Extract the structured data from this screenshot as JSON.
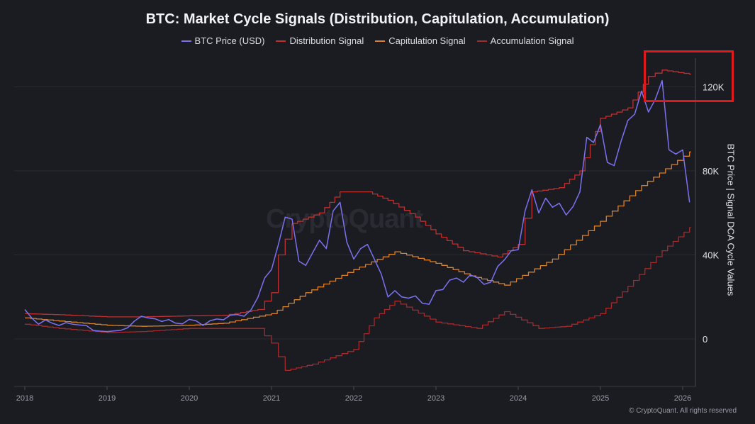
{
  "chart_data": {
    "type": "line",
    "title": "BTC: Market Cycle Signals (Distribution, Capitulation, Accumulation)",
    "ylabel": "BTC Price | Signal DCA Cycle Values",
    "xlabel": "",
    "x_ticks": [
      "2018",
      "2019",
      "2020",
      "2021",
      "2022",
      "2023",
      "2024",
      "2025",
      "2026"
    ],
    "y_ticks": [
      {
        "v": 0,
        "label": "0"
      },
      {
        "v": 40000,
        "label": "40K"
      },
      {
        "v": 80000,
        "label": "80K"
      },
      {
        "v": 120000,
        "label": "120K"
      }
    ],
    "ylim": [
      -22000,
      135000
    ],
    "xlim": [
      "2018-01",
      "2026-03"
    ],
    "grid": true,
    "legend_position": "top",
    "series": [
      {
        "name": "BTC Price (USD)",
        "color": "#7b72f0",
        "points": [
          [
            "2018-01",
            14000
          ],
          [
            "2018-02",
            10000
          ],
          [
            "2018-03",
            7000
          ],
          [
            "2018-04",
            9000
          ],
          [
            "2018-05",
            7500
          ],
          [
            "2018-06",
            6400
          ],
          [
            "2018-07",
            7700
          ],
          [
            "2018-08",
            7000
          ],
          [
            "2018-09",
            6600
          ],
          [
            "2018-10",
            6300
          ],
          [
            "2018-11",
            4000
          ],
          [
            "2018-12",
            3700
          ],
          [
            "2019-01",
            3500
          ],
          [
            "2019-02",
            3800
          ],
          [
            "2019-03",
            4100
          ],
          [
            "2019-04",
            5300
          ],
          [
            "2019-05",
            8500
          ],
          [
            "2019-06",
            10800
          ],
          [
            "2019-07",
            10000
          ],
          [
            "2019-08",
            9600
          ],
          [
            "2019-09",
            8300
          ],
          [
            "2019-10",
            9200
          ],
          [
            "2019-11",
            7500
          ],
          [
            "2019-12",
            7200
          ],
          [
            "2020-01",
            9300
          ],
          [
            "2020-02",
            8600
          ],
          [
            "2020-03",
            6400
          ],
          [
            "2020-04",
            8600
          ],
          [
            "2020-05",
            9500
          ],
          [
            "2020-06",
            9100
          ],
          [
            "2020-07",
            11300
          ],
          [
            "2020-08",
            11600
          ],
          [
            "2020-09",
            10800
          ],
          [
            "2020-10",
            13800
          ],
          [
            "2020-11",
            19700
          ],
          [
            "2020-12",
            29000
          ],
          [
            "2021-01",
            33000
          ],
          [
            "2021-02",
            45000
          ],
          [
            "2021-03",
            58000
          ],
          [
            "2021-04",
            57000
          ],
          [
            "2021-05",
            37000
          ],
          [
            "2021-06",
            35000
          ],
          [
            "2021-07",
            41000
          ],
          [
            "2021-08",
            47000
          ],
          [
            "2021-09",
            43000
          ],
          [
            "2021-10",
            61000
          ],
          [
            "2021-11",
            65000
          ],
          [
            "2021-12",
            46000
          ],
          [
            "2022-01",
            38000
          ],
          [
            "2022-02",
            43000
          ],
          [
            "2022-03",
            45000
          ],
          [
            "2022-04",
            38000
          ],
          [
            "2022-05",
            31000
          ],
          [
            "2022-06",
            20000
          ],
          [
            "2022-07",
            23000
          ],
          [
            "2022-08",
            20000
          ],
          [
            "2022-09",
            19400
          ],
          [
            "2022-10",
            20500
          ],
          [
            "2022-11",
            17000
          ],
          [
            "2022-12",
            16500
          ],
          [
            "2023-01",
            23000
          ],
          [
            "2023-02",
            23500
          ],
          [
            "2023-03",
            28000
          ],
          [
            "2023-04",
            29000
          ],
          [
            "2023-05",
            27000
          ],
          [
            "2023-06",
            30500
          ],
          [
            "2023-07",
            29200
          ],
          [
            "2023-08",
            26000
          ],
          [
            "2023-09",
            27000
          ],
          [
            "2023-10",
            34500
          ],
          [
            "2023-11",
            37700
          ],
          [
            "2023-12",
            42000
          ],
          [
            "2024-01",
            42500
          ],
          [
            "2024-02",
            61000
          ],
          [
            "2024-03",
            71000
          ],
          [
            "2024-04",
            60000
          ],
          [
            "2024-05",
            67000
          ],
          [
            "2024-06",
            62700
          ],
          [
            "2024-07",
            64600
          ],
          [
            "2024-08",
            59000
          ],
          [
            "2024-09",
            63000
          ],
          [
            "2024-10",
            70000
          ],
          [
            "2024-11",
            96000
          ],
          [
            "2024-12",
            93500
          ],
          [
            "2025-01",
            102000
          ],
          [
            "2025-02",
            84000
          ],
          [
            "2025-03",
            82500
          ],
          [
            "2025-04",
            94000
          ],
          [
            "2025-05",
            104000
          ],
          [
            "2025-06",
            107000
          ],
          [
            "2025-07",
            118000
          ],
          [
            "2025-08",
            108000
          ],
          [
            "2025-09",
            114000
          ],
          [
            "2025-10",
            123000
          ],
          [
            "2025-11",
            90000
          ],
          [
            "2025-12",
            88000
          ],
          [
            "2026-01",
            90000
          ],
          [
            "2026-02",
            65000
          ]
        ]
      },
      {
        "name": "Distribution Signal",
        "color": "#c0302f",
        "points": [
          [
            "2018-01",
            12000
          ],
          [
            "2018-06",
            11500
          ],
          [
            "2019-01",
            10500
          ],
          [
            "2019-06",
            10500
          ],
          [
            "2020-01",
            11000
          ],
          [
            "2020-06",
            11200
          ],
          [
            "2020-11",
            14000
          ],
          [
            "2021-01",
            22000
          ],
          [
            "2021-02",
            40000
          ],
          [
            "2021-04",
            55000
          ],
          [
            "2021-08",
            60000
          ],
          [
            "2021-11",
            70000
          ],
          [
            "2022-03",
            70000
          ],
          [
            "2022-06",
            66000
          ],
          [
            "2022-10",
            58000
          ],
          [
            "2023-01",
            50000
          ],
          [
            "2023-05",
            42000
          ],
          [
            "2023-10",
            39000
          ],
          [
            "2024-01",
            45000
          ],
          [
            "2024-03",
            70000
          ],
          [
            "2024-07",
            72000
          ],
          [
            "2024-10",
            80000
          ],
          [
            "2025-01",
            105000
          ],
          [
            "2025-05",
            110000
          ],
          [
            "2025-08",
            125000
          ],
          [
            "2025-10",
            128000
          ],
          [
            "2026-02",
            126000
          ]
        ]
      },
      {
        "name": "Capitulation Signal",
        "color": "#d9822b",
        "points": [
          [
            "2018-01",
            10000
          ],
          [
            "2018-06",
            8500
          ],
          [
            "2019-01",
            6500
          ],
          [
            "2019-06",
            6000
          ],
          [
            "2020-01",
            6500
          ],
          [
            "2020-06",
            7500
          ],
          [
            "2021-01",
            12000
          ],
          [
            "2021-06",
            22000
          ],
          [
            "2022-01",
            33000
          ],
          [
            "2022-07",
            41500
          ],
          [
            "2023-01",
            36000
          ],
          [
            "2023-06",
            30000
          ],
          [
            "2023-11",
            25600
          ],
          [
            "2024-06",
            38000
          ],
          [
            "2025-01",
            56000
          ],
          [
            "2025-07",
            73000
          ],
          [
            "2026-02",
            89000
          ]
        ]
      },
      {
        "name": "Accumulation Signal",
        "color": "#a72a2a",
        "points": [
          [
            "2018-01",
            7000
          ],
          [
            "2018-06",
            5000
          ],
          [
            "2019-01",
            3000
          ],
          [
            "2019-06",
            3500
          ],
          [
            "2020-01",
            5000
          ],
          [
            "2020-11",
            5000
          ],
          [
            "2021-01",
            -2000
          ],
          [
            "2021-03",
            -15000
          ],
          [
            "2021-07",
            -12000
          ],
          [
            "2022-01",
            -5000
          ],
          [
            "2022-04",
            10000
          ],
          [
            "2022-07",
            18000
          ],
          [
            "2023-01",
            8000
          ],
          [
            "2023-07",
            5000
          ],
          [
            "2023-11",
            13000
          ],
          [
            "2024-04",
            5000
          ],
          [
            "2024-08",
            6000
          ],
          [
            "2025-01",
            12000
          ],
          [
            "2025-05",
            25000
          ],
          [
            "2025-10",
            42000
          ],
          [
            "2026-02",
            53000
          ]
        ]
      }
    ]
  },
  "watermark": "CryptoQuant",
  "copyright": "© CryptoQuant. All rights reserved"
}
